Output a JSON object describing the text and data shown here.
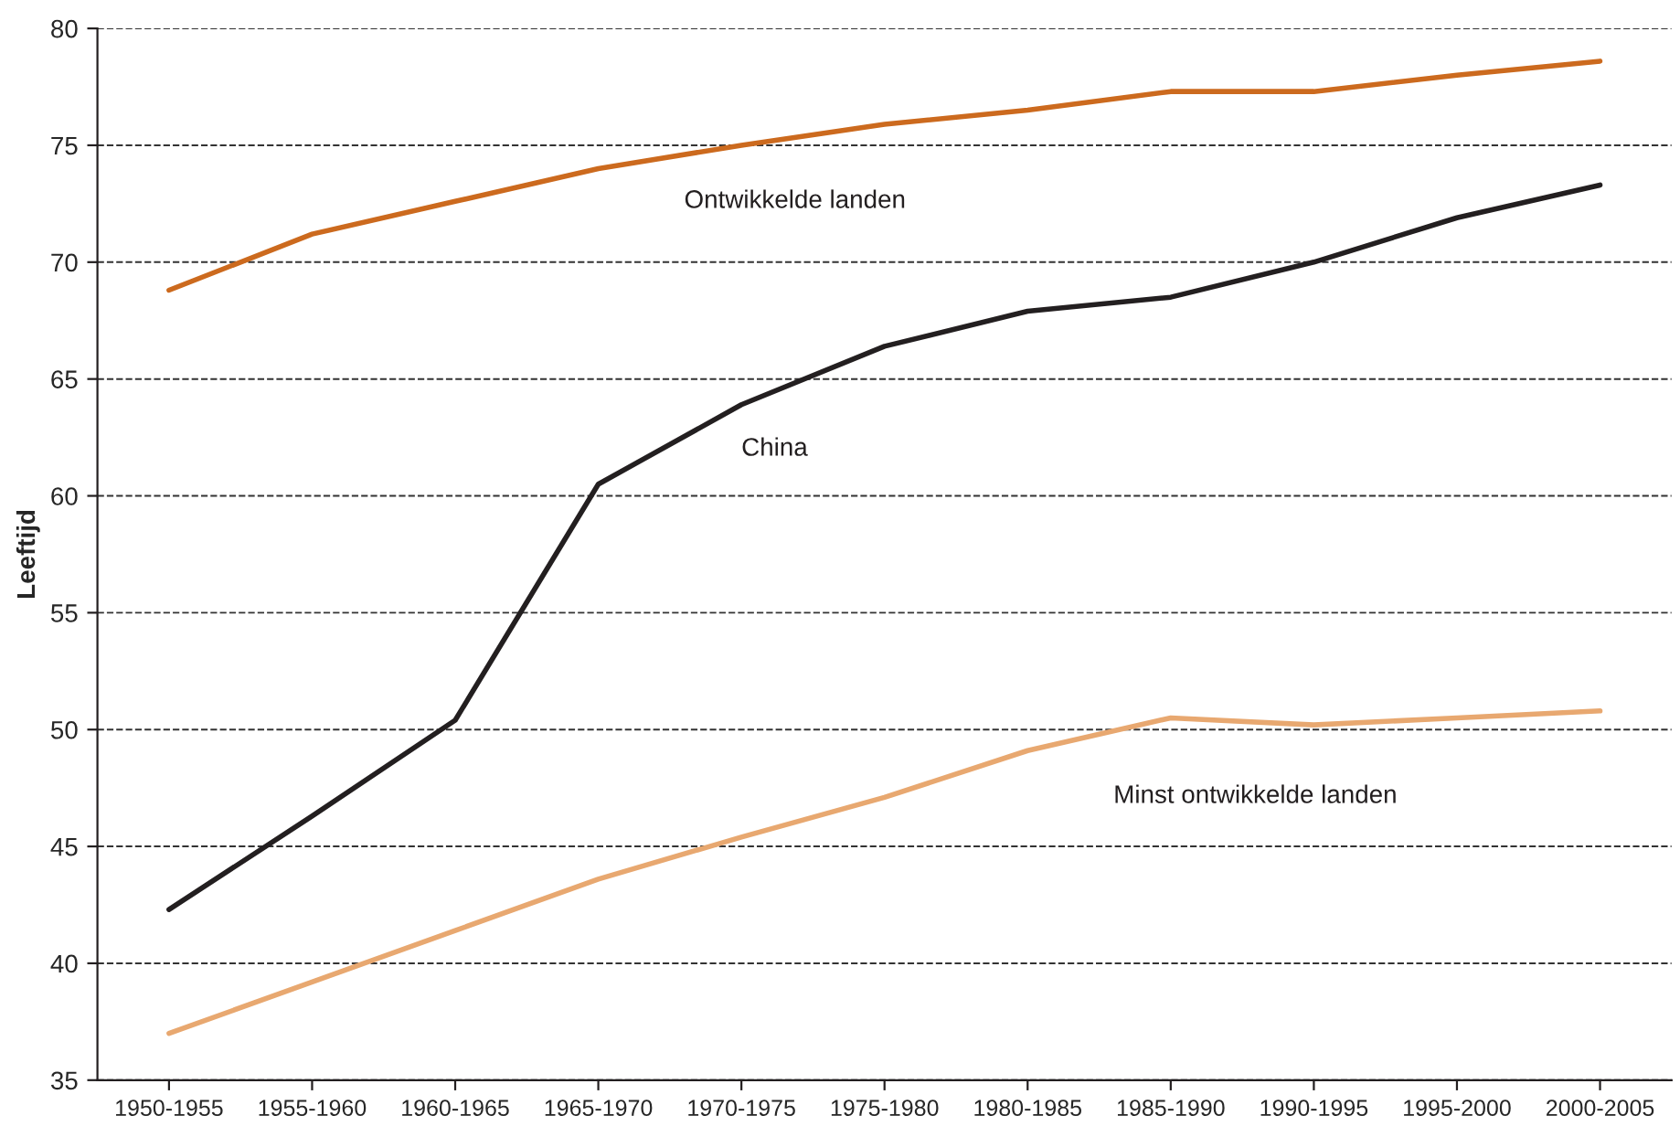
{
  "chart_data": {
    "type": "line",
    "ylabel": "Leeftijd",
    "categories": [
      "1950-1955",
      "1955-1960",
      "1960-1965",
      "1965-1970",
      "1970-1975",
      "1975-1980",
      "1980-1985",
      "1985-1990",
      "1990-1995",
      "1995-2000",
      "2000-2005"
    ],
    "series": [
      {
        "name": "Ontwikkelde landen",
        "color": "#cc6a1e",
        "values": [
          68.8,
          71.2,
          72.6,
          74.0,
          75.0,
          75.9,
          76.5,
          77.3,
          77.3,
          78.0,
          78.6
        ]
      },
      {
        "name": "China",
        "color": "#231f20",
        "values": [
          42.3,
          46.3,
          50.4,
          60.5,
          63.9,
          66.4,
          67.9,
          68.5,
          70.0,
          71.9,
          73.3
        ]
      },
      {
        "name": "Minst ontwikkelde landen",
        "color": "#e8a870",
        "values": [
          37.0,
          39.2,
          41.4,
          43.6,
          45.4,
          47.1,
          49.1,
          50.5,
          50.2,
          50.5,
          50.8
        ]
      }
    ],
    "ylim": [
      35,
      80
    ],
    "yticks": [
      35,
      40,
      45,
      50,
      55,
      60,
      65,
      70,
      75,
      80
    ],
    "grid": "y",
    "line_style": "solid",
    "legend": false
  }
}
